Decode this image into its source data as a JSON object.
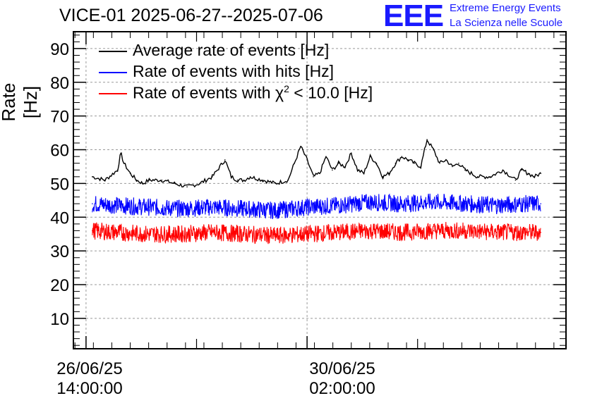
{
  "chart_data": {
    "type": "line",
    "title": "VICE-01 2025-06-27--2025-07-06",
    "ylabel": "Rate [Hz]",
    "xlabel": "",
    "ylim": [
      1,
      95
    ],
    "yticks": [
      10,
      20,
      30,
      40,
      50,
      60,
      70,
      80,
      90
    ],
    "xtick_labels": [
      {
        "line1": "26/06/25",
        "line2": "14:00:00"
      },
      {
        "line1": "30/06/25",
        "line2": "02:00:00"
      }
    ],
    "x_unit": "days since 26/06/25 14:00:00",
    "xlim": [
      -0.2,
      7.6
    ],
    "grid": true,
    "legend_position": "top-left",
    "series": [
      {
        "name": "Average rate of events [Hz]",
        "color": "#000000",
        "x": [
          0.1,
          0.3,
          0.5,
          0.55,
          0.6,
          0.7,
          0.8,
          0.9,
          1.0,
          1.2,
          1.4,
          1.6,
          1.8,
          2.0,
          2.2,
          2.3,
          2.4,
          2.5,
          2.6,
          2.8,
          3.0,
          3.2,
          3.3,
          3.4,
          3.5,
          3.6,
          3.7,
          3.8,
          3.9,
          4.0,
          4.1,
          4.2,
          4.3,
          4.4,
          4.5,
          4.6,
          4.7,
          4.8,
          4.9,
          5.0,
          5.1,
          5.2,
          5.3,
          5.4,
          5.5,
          5.6,
          5.7,
          5.8,
          5.9,
          6.0,
          6.2,
          6.4,
          6.6,
          6.8,
          6.9,
          7.0,
          7.1,
          7.2
        ],
        "values": [
          52,
          51,
          54,
          59,
          56,
          53,
          51,
          50,
          51,
          51,
          50,
          49,
          50,
          52,
          57,
          52,
          51,
          51,
          52,
          51,
          50,
          51,
          56,
          61,
          57,
          52,
          53,
          58,
          54,
          56,
          55,
          59,
          54,
          53,
          58,
          56,
          52,
          53,
          56,
          58,
          57,
          56,
          55,
          63,
          60,
          56,
          57,
          55,
          56,
          54,
          52,
          52,
          54,
          51,
          54,
          53,
          52,
          53
        ]
      },
      {
        "name": "Rate of events with hits [Hz]",
        "color": "#0000ff",
        "x": [
          0.1,
          0.5,
          1.0,
          1.5,
          2.0,
          2.5,
          3.0,
          3.5,
          4.0,
          4.5,
          5.0,
          5.5,
          6.0,
          6.5,
          7.0,
          7.2
        ],
        "values": [
          44,
          43.5,
          43,
          42.5,
          43,
          42.5,
          42,
          43,
          43.5,
          44.5,
          44,
          44.5,
          44,
          43.5,
          44,
          44
        ]
      },
      {
        "name": "Rate of events with χ² < 10.0 [Hz]",
        "color": "#ff0000",
        "x": [
          0.1,
          0.5,
          1.0,
          1.5,
          2.0,
          2.5,
          3.0,
          3.5,
          4.0,
          4.5,
          5.0,
          5.5,
          6.0,
          6.5,
          7.0,
          7.2
        ],
        "values": [
          36,
          35.5,
          35,
          35,
          35.5,
          35,
          34.5,
          35,
          35.5,
          36,
          35.5,
          36,
          36,
          35.5,
          35.5,
          35.5
        ]
      }
    ]
  },
  "legend": {
    "avg": "Average rate of events [Hz]",
    "hits": "Rate of events with hits [Hz]",
    "chi_prefix": "Rate of events with χ",
    "chi_sup": "2",
    "chi_suffix": " < 10.0 [Hz]"
  },
  "logo": {
    "mark": "EEE",
    "line1": "Extreme Energy Events",
    "line2": "La Scienza nelle Scuole"
  }
}
